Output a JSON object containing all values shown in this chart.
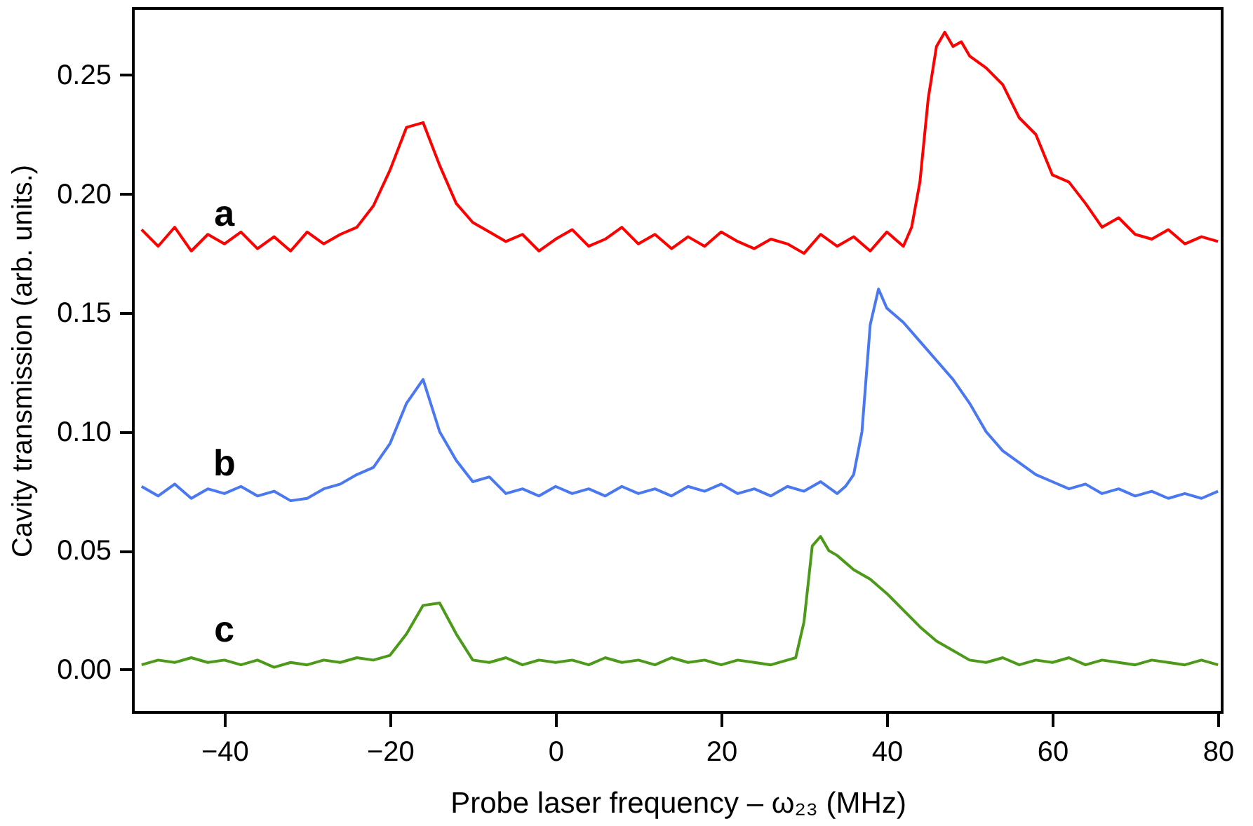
{
  "chart_data": {
    "type": "line",
    "xlabel": "Probe laser frequency – ω₂₃ (MHz)",
    "ylabel": "Cavity transmission (arb. units.)",
    "xlim": [
      -51,
      80.5
    ],
    "xticks": [
      -40,
      -20,
      0,
      20,
      40,
      60,
      80
    ],
    "ylim": [
      -0.018,
      0.278
    ],
    "yticks": [
      {
        "value": 0,
        "label": "0.00"
      },
      0.05,
      {
        "value": 0.1,
        "label": "0.10"
      },
      0.15,
      {
        "value": 0.2,
        "label": "0.20"
      },
      0.25
    ],
    "grid": false,
    "series": [
      {
        "name": "a",
        "color": "#ff0000",
        "x": [
          -50,
          -48,
          -46,
          -44,
          -42,
          -40,
          -38,
          -36,
          -34,
          -32,
          -30,
          -28,
          -26,
          -24,
          -22,
          -20,
          -18,
          -16,
          -14,
          -12,
          -10,
          -8,
          -6,
          -4,
          -2,
          0,
          2,
          4,
          6,
          8,
          10,
          12,
          14,
          16,
          18,
          20,
          22,
          24,
          26,
          28,
          30,
          32,
          34,
          36,
          38,
          40,
          42,
          43,
          44,
          45,
          46,
          47,
          48,
          49,
          50,
          52,
          54,
          56,
          58,
          60,
          62,
          64,
          66,
          68,
          70,
          72,
          74,
          76,
          78,
          80
        ],
        "values": [
          0.185,
          0.178,
          0.186,
          0.176,
          0.183,
          0.179,
          0.184,
          0.177,
          0.182,
          0.176,
          0.184,
          0.179,
          0.183,
          0.186,
          0.195,
          0.21,
          0.228,
          0.23,
          0.212,
          0.196,
          0.188,
          0.184,
          0.18,
          0.183,
          0.176,
          0.181,
          0.185,
          0.178,
          0.181,
          0.186,
          0.179,
          0.183,
          0.177,
          0.182,
          0.178,
          0.184,
          0.18,
          0.177,
          0.181,
          0.179,
          0.175,
          0.183,
          0.178,
          0.182,
          0.176,
          0.184,
          0.178,
          0.186,
          0.205,
          0.24,
          0.262,
          0.268,
          0.262,
          0.264,
          0.258,
          0.253,
          0.246,
          0.232,
          0.225,
          0.208,
          0.205,
          0.196,
          0.186,
          0.19,
          0.183,
          0.181,
          0.185,
          0.179,
          0.182,
          0.18
        ]
      },
      {
        "name": "b",
        "color": "#4a78f0",
        "x": [
          -50,
          -48,
          -46,
          -44,
          -42,
          -40,
          -38,
          -36,
          -34,
          -32,
          -30,
          -28,
          -26,
          -24,
          -22,
          -20,
          -18,
          -16,
          -14,
          -12,
          -10,
          -8,
          -6,
          -4,
          -2,
          0,
          2,
          4,
          6,
          8,
          10,
          12,
          14,
          16,
          18,
          20,
          22,
          24,
          26,
          28,
          30,
          32,
          34,
          35,
          36,
          37,
          38,
          39,
          40,
          42,
          44,
          46,
          48,
          50,
          52,
          54,
          56,
          58,
          60,
          62,
          64,
          66,
          68,
          70,
          72,
          74,
          76,
          78,
          80
        ],
        "values": [
          0.077,
          0.073,
          0.078,
          0.072,
          0.076,
          0.074,
          0.077,
          0.073,
          0.075,
          0.071,
          0.072,
          0.076,
          0.078,
          0.082,
          0.085,
          0.095,
          0.112,
          0.122,
          0.1,
          0.088,
          0.079,
          0.081,
          0.074,
          0.076,
          0.073,
          0.077,
          0.074,
          0.076,
          0.073,
          0.077,
          0.074,
          0.076,
          0.073,
          0.077,
          0.075,
          0.078,
          0.074,
          0.076,
          0.073,
          0.077,
          0.075,
          0.079,
          0.074,
          0.077,
          0.082,
          0.1,
          0.145,
          0.16,
          0.152,
          0.146,
          0.138,
          0.13,
          0.122,
          0.112,
          0.1,
          0.092,
          0.087,
          0.082,
          0.079,
          0.076,
          0.078,
          0.074,
          0.076,
          0.073,
          0.075,
          0.072,
          0.074,
          0.072,
          0.075
        ]
      },
      {
        "name": "c",
        "color": "#4d9a1a",
        "x": [
          -50,
          -48,
          -46,
          -44,
          -42,
          -40,
          -38,
          -36,
          -34,
          -32,
          -30,
          -28,
          -26,
          -24,
          -22,
          -20,
          -18,
          -16,
          -14,
          -12,
          -10,
          -8,
          -6,
          -4,
          -2,
          0,
          2,
          4,
          6,
          8,
          10,
          12,
          14,
          16,
          18,
          20,
          22,
          24,
          26,
          28,
          29,
          30,
          31,
          32,
          33,
          34,
          36,
          38,
          40,
          42,
          44,
          46,
          48,
          50,
          52,
          54,
          56,
          58,
          60,
          62,
          64,
          66,
          68,
          70,
          72,
          74,
          76,
          78,
          80
        ],
        "values": [
          0.002,
          0.004,
          0.003,
          0.005,
          0.003,
          0.004,
          0.002,
          0.004,
          0.001,
          0.003,
          0.002,
          0.004,
          0.003,
          0.005,
          0.004,
          0.006,
          0.015,
          0.027,
          0.028,
          0.015,
          0.004,
          0.003,
          0.005,
          0.002,
          0.004,
          0.003,
          0.004,
          0.002,
          0.005,
          0.003,
          0.004,
          0.002,
          0.005,
          0.003,
          0.004,
          0.002,
          0.004,
          0.003,
          0.002,
          0.004,
          0.005,
          0.02,
          0.052,
          0.056,
          0.05,
          0.048,
          0.042,
          0.038,
          0.032,
          0.025,
          0.018,
          0.012,
          0.008,
          0.004,
          0.003,
          0.005,
          0.002,
          0.004,
          0.003,
          0.005,
          0.002,
          0.004,
          0.003,
          0.002,
          0.004,
          0.003,
          0.002,
          0.004,
          0.002
        ]
      }
    ]
  }
}
